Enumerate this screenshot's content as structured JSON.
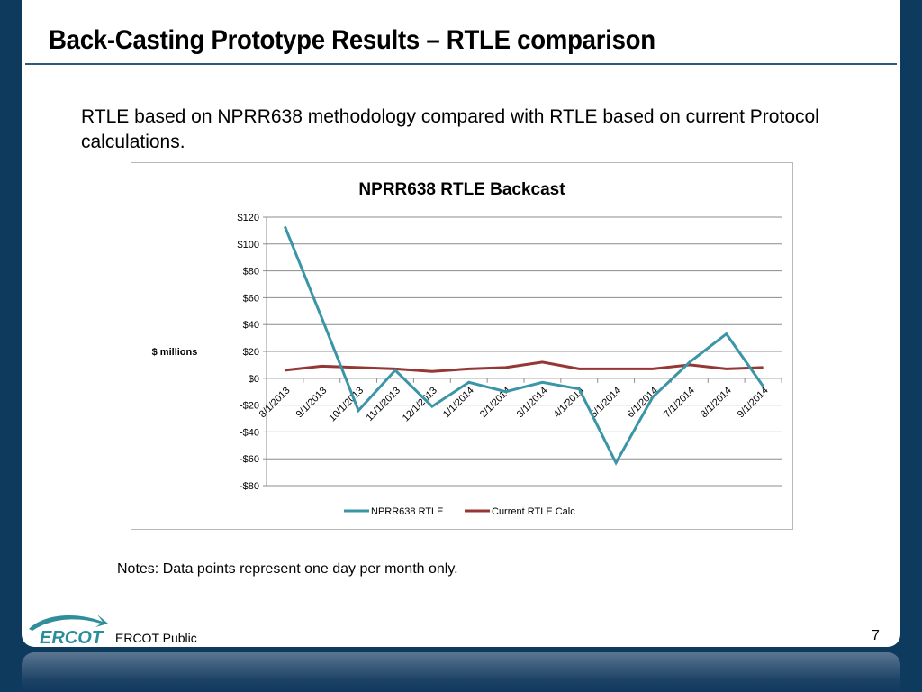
{
  "slide": {
    "title": "Back-Casting Prototype Results – RTLE comparison",
    "subtitle": "RTLE based on NPRR638 methodology  compared with RTLE based on current Protocol calculations.",
    "notes": "Notes: Data points represent one day per month only.",
    "footer": "ERCOT Public",
    "page_number": "7",
    "logo_text": "ERCOT",
    "colors": {
      "navy": "#0e3a5e",
      "teal": "#3a95a6",
      "maroon": "#953735"
    }
  },
  "chart_data": {
    "type": "line",
    "title": "NPRR638 RTLE Backcast",
    "xlabel": "",
    "ylabel": "$ millions",
    "ylim": [
      -80,
      120
    ],
    "yticks": [
      120,
      100,
      80,
      60,
      40,
      20,
      0,
      -20,
      -40,
      -60,
      -80
    ],
    "ytick_labels": [
      "$120",
      "$100",
      "$80",
      "$60",
      "$40",
      "$20",
      "$0",
      "-$20",
      "-$40",
      "-$60",
      "-$80"
    ],
    "grid": true,
    "legend": "bottom",
    "categories": [
      "8/1/2013",
      "9/1/2013",
      "10/1/2013",
      "11/1/2013",
      "12/1/2013",
      "1/1/2014",
      "2/1/2014",
      "3/1/2014",
      "4/1/2014",
      "5/1/2014",
      "6/1/2014",
      "7/1/2014",
      "8/1/2014",
      "9/1/2014"
    ],
    "series": [
      {
        "name": "NPRR638 RTLE",
        "color": "#3a95a6",
        "values": [
          113,
          45,
          -24,
          6,
          -21,
          -3,
          -10,
          -3,
          -8,
          -63,
          -14,
          12,
          33,
          -6
        ]
      },
      {
        "name": "Current RTLE Calc",
        "color": "#953735",
        "values": [
          6,
          9,
          8,
          7,
          5,
          7,
          8,
          12,
          7,
          7,
          7,
          10,
          7,
          8
        ]
      }
    ]
  }
}
